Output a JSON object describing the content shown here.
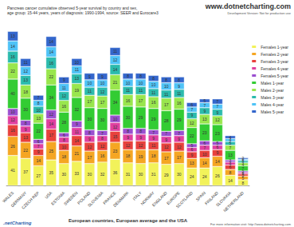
{
  "chart_data": {
    "type": "bar",
    "title": "Pancreas cancer cumulative observed 5-year survival by country and sex,",
    "subtitle": "age group: 15-44 years, years of diagnosis: 1990-1994, source: SEER and Eurocare3",
    "x_label": "European countries, European average and the USA",
    "annotations": [
      "www.dotnetcharting.com",
      "Development Version: Not for production use",
      "For more information visit: http://www.dotnetcharting.com",
      ".netCharting"
    ],
    "categories": [
      "WALES",
      "GERMANY",
      "CZECH REP",
      "USA",
      "ESTONIA",
      "SWEDEN",
      "POLAND",
      "SLOVENIA",
      "FRANCE",
      "DENMARK",
      "ITALY",
      "NORWAY",
      "ENGLAND",
      "EUROPE",
      "SCOTLAND",
      "SPAIN",
      "FINLAND",
      "SLOVAKIA",
      "NETHERLAND"
    ],
    "series": [
      {
        "name": "Females 1-year",
        "color": "#F2F25A",
        "values": [
          41,
          37,
          27,
          35,
          30,
          33,
          30,
          32,
          36,
          31,
          30,
          31,
          29,
          30,
          24,
          24,
          26,
          14,
          8
        ]
      },
      {
        "name": "Females 2-year",
        "color": "#F5A623",
        "values": [
          26,
          22,
          14,
          25,
          18,
          21,
          17,
          16,
          23,
          18,
          19,
          18,
          17,
          17,
          13,
          14,
          14,
          8,
          5
        ]
      },
      {
        "name": "Females 3-year",
        "color": "#E8413C",
        "values": [
          16,
          13,
          9,
          17,
          10,
          14,
          12,
          12,
          15,
          12,
          12,
          11,
          12,
          12,
          9,
          10,
          9,
          6,
          3
        ]
      },
      {
        "name": "Females 4-year",
        "color": "#E040A0",
        "values": [
          12,
          9,
          7,
          14,
          8,
          11,
          9,
          8,
          12,
          9,
          9,
          9,
          9,
          9,
          6,
          7,
          6,
          4,
          2
        ]
      },
      {
        "name": "Females 5-year",
        "color": "#9B4FD0",
        "values": [
          10,
          8,
          6,
          12,
          6,
          9,
          8,
          7,
          10,
          8,
          8,
          7,
          7,
          7,
          5,
          6,
          5,
          3,
          2
        ]
      },
      {
        "name": "Males 1-year",
        "color": "#33CC33",
        "values": [
          40,
          30,
          22,
          34,
          28,
          32,
          30,
          30,
          34,
          30,
          29,
          29,
          28,
          29,
          22,
          23,
          23,
          13,
          7
        ]
      },
      {
        "name": "Males 2-year",
        "color": "#99E64D",
        "values": [
          22,
          18,
          13,
          22,
          16,
          19,
          17,
          17,
          21,
          16,
          17,
          16,
          17,
          16,
          12,
          13,
          12,
          7,
          4
        ]
      },
      {
        "name": "Males 3-year",
        "color": "#2BBBAD",
        "values": [
          16,
          13,
          10,
          16,
          12,
          13,
          11,
          12,
          14,
          11,
          11,
          11,
          11,
          11,
          9,
          9,
          9,
          5,
          3
        ]
      },
      {
        "name": "Males 4-year",
        "color": "#4FC3F7",
        "values": [
          14,
          12,
          8,
          14,
          11,
          11,
          10,
          10,
          12,
          10,
          10,
          10,
          10,
          9,
          7,
          7,
          7,
          4,
          2
        ]
      },
      {
        "name": "Males 5-year",
        "color": "#3366CC",
        "values": [
          13,
          11,
          7,
          14,
          9,
          10,
          9,
          9,
          11,
          8,
          8,
          8,
          8,
          8,
          6,
          5,
          7,
          4,
          2
        ]
      }
    ],
    "ylim": [
      0,
      220
    ],
    "stacked": true,
    "data_labels": true,
    "tick_labels": "x",
    "grid": false,
    "legend": "right"
  }
}
